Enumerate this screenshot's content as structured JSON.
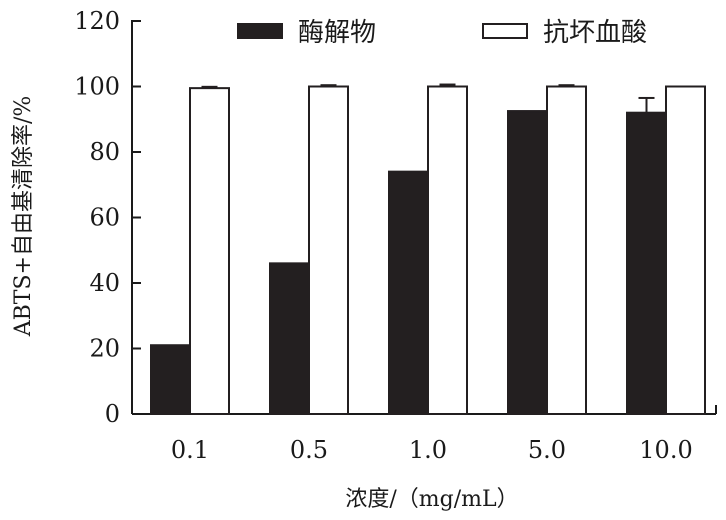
{
  "chart_data": {
    "type": "bar",
    "categories": [
      "0.1",
      "0.5",
      "1.0",
      "5.0",
      "10.0"
    ],
    "series": [
      {
        "name": "酶解物",
        "values": [
          21,
          46,
          74,
          92.5,
          92
        ],
        "errors": [
          0,
          0,
          0,
          0,
          4.5
        ],
        "color": "#231f20"
      },
      {
        "name": "抗坏血酸",
        "values": [
          99.5,
          100,
          100,
          100,
          100
        ],
        "errors": [
          0.4,
          0.4,
          0.6,
          0.4,
          0
        ],
        "color": "#ffffff"
      }
    ],
    "xlabel": "浓度/（mg/mL）",
    "ylabel": "ABTS+自由基清除率/%",
    "ylim": [
      0,
      120
    ],
    "yticks": [
      "0",
      "20",
      "40",
      "60",
      "80",
      "100",
      "120"
    ],
    "legend_position": "top-right",
    "grid": false
  }
}
